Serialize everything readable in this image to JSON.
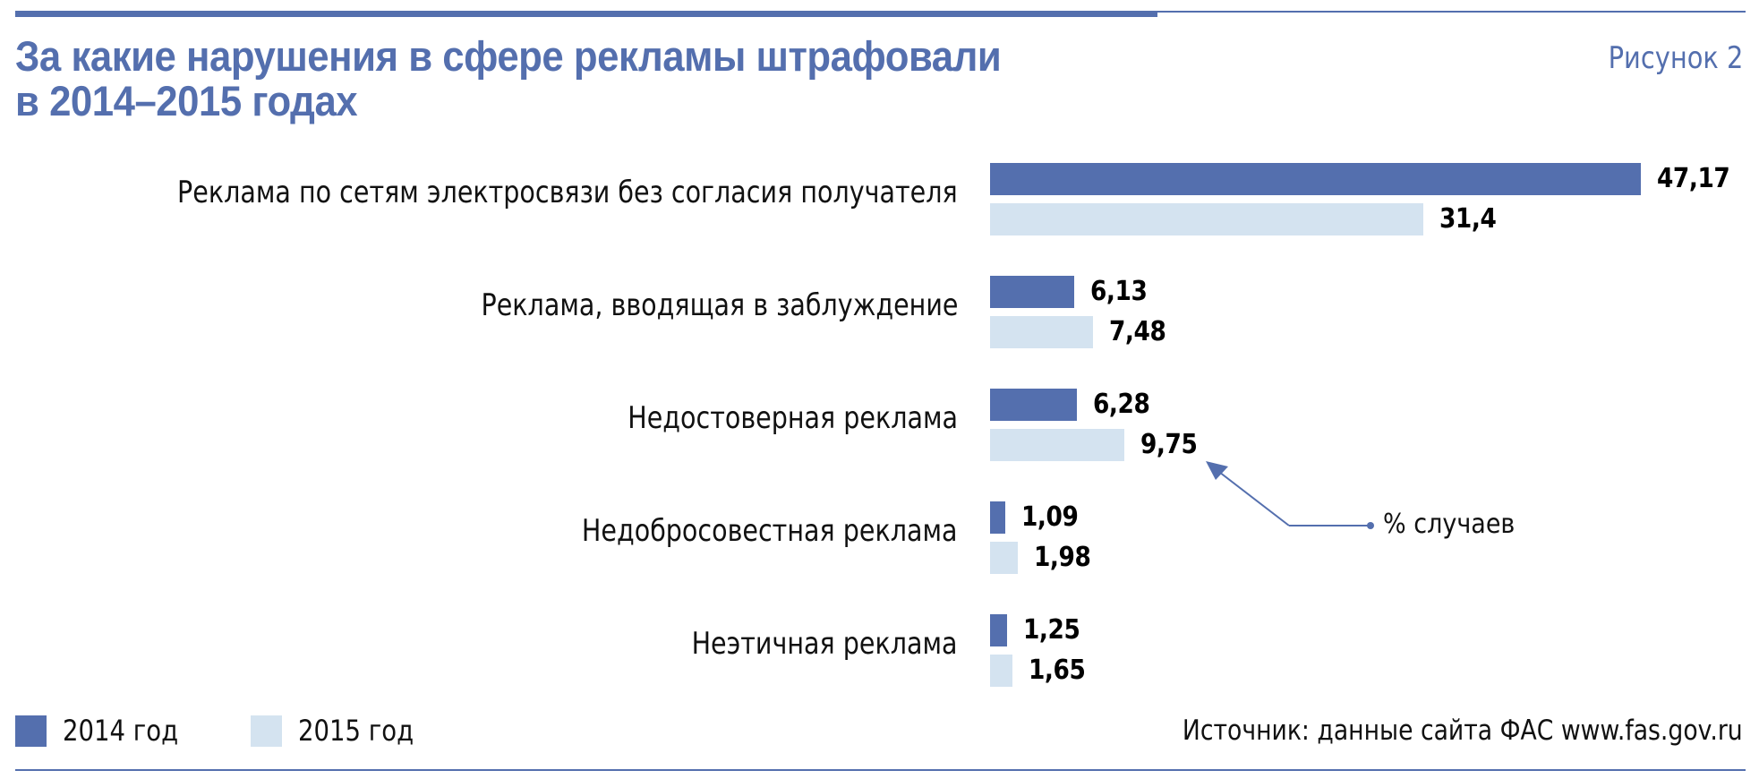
{
  "header": {
    "title_line1": "За какие нарушения в сфере рекламы штрафовали",
    "title_line2": "в 2014–2015 годах",
    "figure_label": "Рисунок 2"
  },
  "colors": {
    "accent": "#546fae",
    "series_2014": "#546fae",
    "series_2015": "#d4e3f0",
    "text": "#111111"
  },
  "legend": {
    "items": [
      {
        "label": "2014 год",
        "color": "#546fae"
      },
      {
        "label": "2015 год",
        "color": "#d4e3f0"
      }
    ]
  },
  "annotation": {
    "text": "% случаев"
  },
  "footer": {
    "source": "Источник: данные сайта ФАС www.fas.gov.ru"
  },
  "chart_data": {
    "type": "bar",
    "orientation": "horizontal",
    "title": "За какие нарушения в сфере рекламы штрафовали в 2014–2015 годах",
    "categories": [
      "Реклама по сетям электросвязи без согласия получателя",
      "Реклама, вводящая в заблуждение",
      "Недостоверная реклама",
      "Недобросовестная реклама",
      "Неэтичная реклама"
    ],
    "series": [
      {
        "name": "2014 год",
        "values": [
          47.17,
          6.13,
          6.28,
          1.09,
          1.25
        ],
        "labels": [
          "47,17",
          "6,13",
          "6,28",
          "1,09",
          "1,25"
        ]
      },
      {
        "name": "2015 год",
        "values": [
          31.4,
          7.48,
          9.75,
          1.98,
          1.65
        ],
        "labels": [
          "31,4",
          "7,48",
          "9,75",
          "1,98",
          "1,65"
        ]
      }
    ],
    "unit": "% случаев",
    "xlabel": "",
    "ylabel": "",
    "grid": false,
    "legend_position": "bottom-left",
    "source": "Источник: данные сайта ФАС www.fas.gov.ru"
  }
}
